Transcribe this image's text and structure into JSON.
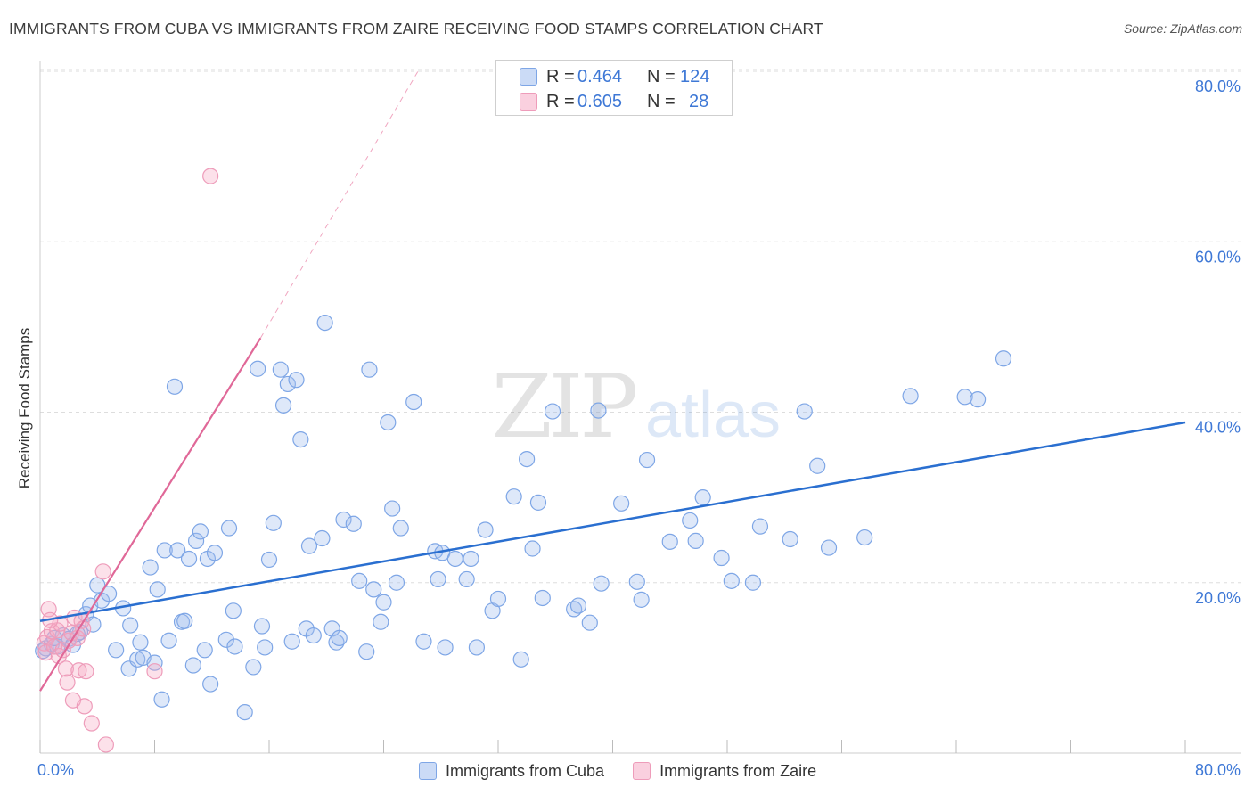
{
  "title": "IMMIGRANTS FROM CUBA VS IMMIGRANTS FROM ZAIRE RECEIVING FOOD STAMPS CORRELATION CHART",
  "source": "Source: ZipAtlas.com",
  "watermark": {
    "zip": "ZIP",
    "atlas": "atlas"
  },
  "legend_top": {
    "series1": {
      "r_label": "R =",
      "r_value": "0.464",
      "n_label": "N =",
      "n_value": "124"
    },
    "series2": {
      "r_label": "R =",
      "r_value": "0.605",
      "n_label": "N =",
      "n_value": "28"
    }
  },
  "legend_bottom": {
    "series1_label": "Immigrants from Cuba",
    "series2_label": "Immigrants from Zaire"
  },
  "colors": {
    "cuba_fill": "rgba(160,190,238,0.35)",
    "cuba_stroke": "#7ea6e6",
    "cuba_line": "#2a6fd0",
    "zaire_fill": "rgba(246,170,196,0.35)",
    "zaire_stroke": "#ee9cba",
    "zaire_line": "#e06898",
    "tick_label": "#3e78d6",
    "grid": "#dddddd"
  },
  "chart_data": {
    "type": "scatter",
    "title": "IMMIGRANTS FROM CUBA VS IMMIGRANTS FROM ZAIRE RECEIVING FOOD STAMPS CORRELATION CHART",
    "xlabel": "",
    "ylabel": "Receiving Food Stamps",
    "xlim": [
      0,
      80
    ],
    "ylim": [
      0,
      80
    ],
    "x_tick_labels": [
      {
        "value": 0,
        "label": "0.0%"
      },
      {
        "value": 80,
        "label": "80.0%"
      }
    ],
    "x_tick_marks": [
      0,
      8,
      16,
      24,
      32,
      40,
      48,
      56,
      64,
      72,
      80
    ],
    "y_ticks": [
      {
        "value": 20,
        "label": "20.0%"
      },
      {
        "value": 40,
        "label": "40.0%"
      },
      {
        "value": 60,
        "label": "60.0%"
      },
      {
        "value": 80,
        "label": "80.0%"
      }
    ],
    "series": [
      {
        "name": "Immigrants from Cuba",
        "r": 0.464,
        "n": 124,
        "trendline": {
          "x": [
            0,
            80
          ],
          "y": [
            15.5,
            38.8
          ],
          "dashed": false
        },
        "points": [
          [
            0.4,
            12.3
          ],
          [
            0.8,
            12.8
          ],
          [
            1.2,
            12.5
          ],
          [
            1.6,
            13.8
          ],
          [
            2.0,
            13.4
          ],
          [
            2.3,
            12.7
          ],
          [
            2.8,
            14.2
          ],
          [
            3.2,
            16.3
          ],
          [
            3.5,
            17.3
          ],
          [
            3.7,
            15.1
          ],
          [
            4.0,
            19.7
          ],
          [
            4.3,
            17.9
          ],
          [
            4.8,
            18.7
          ],
          [
            5.3,
            12.1
          ],
          [
            5.8,
            17.0
          ],
          [
            6.2,
            9.9
          ],
          [
            6.3,
            15.0
          ],
          [
            6.8,
            11.0
          ],
          [
            7.0,
            13.0
          ],
          [
            7.2,
            11.2
          ],
          [
            7.7,
            21.8
          ],
          [
            8.0,
            10.6
          ],
          [
            8.2,
            19.2
          ],
          [
            8.5,
            6.3
          ],
          [
            8.7,
            23.8
          ],
          [
            9.0,
            13.2
          ],
          [
            9.4,
            43.0
          ],
          [
            9.6,
            23.8
          ],
          [
            9.9,
            15.4
          ],
          [
            10.1,
            15.5
          ],
          [
            10.4,
            22.8
          ],
          [
            10.7,
            10.3
          ],
          [
            10.9,
            24.9
          ],
          [
            11.2,
            26.0
          ],
          [
            11.5,
            12.1
          ],
          [
            11.7,
            22.8
          ],
          [
            11.9,
            8.1
          ],
          [
            12.2,
            23.5
          ],
          [
            13.0,
            13.3
          ],
          [
            13.2,
            26.4
          ],
          [
            13.5,
            16.7
          ],
          [
            13.6,
            12.5
          ],
          [
            14.3,
            4.8
          ],
          [
            14.9,
            10.1
          ],
          [
            15.2,
            45.1
          ],
          [
            15.5,
            14.9
          ],
          [
            15.7,
            12.4
          ],
          [
            16.0,
            22.7
          ],
          [
            16.3,
            27.0
          ],
          [
            16.8,
            45.0
          ],
          [
            17.0,
            40.8
          ],
          [
            17.3,
            43.3
          ],
          [
            17.6,
            13.1
          ],
          [
            17.9,
            43.8
          ],
          [
            18.2,
            36.8
          ],
          [
            18.6,
            14.6
          ],
          [
            18.8,
            24.3
          ],
          [
            19.1,
            13.8
          ],
          [
            19.7,
            25.2
          ],
          [
            19.9,
            50.5
          ],
          [
            20.4,
            14.6
          ],
          [
            20.7,
            13.0
          ],
          [
            20.9,
            13.5
          ],
          [
            21.2,
            27.4
          ],
          [
            21.9,
            26.9
          ],
          [
            22.3,
            20.2
          ],
          [
            22.8,
            11.9
          ],
          [
            23.0,
            45.0
          ],
          [
            23.3,
            19.2
          ],
          [
            23.8,
            15.4
          ],
          [
            24.0,
            17.7
          ],
          [
            24.3,
            38.8
          ],
          [
            24.6,
            28.7
          ],
          [
            24.9,
            20.0
          ],
          [
            25.2,
            26.4
          ],
          [
            26.1,
            41.2
          ],
          [
            26.8,
            13.1
          ],
          [
            27.6,
            23.7
          ],
          [
            27.8,
            20.4
          ],
          [
            28.1,
            23.5
          ],
          [
            28.3,
            12.4
          ],
          [
            29.0,
            22.8
          ],
          [
            29.8,
            20.4
          ],
          [
            30.1,
            22.8
          ],
          [
            30.5,
            12.4
          ],
          [
            31.1,
            26.2
          ],
          [
            31.6,
            16.7
          ],
          [
            32.0,
            18.1
          ],
          [
            33.1,
            30.1
          ],
          [
            33.6,
            11.0
          ],
          [
            34.0,
            34.5
          ],
          [
            34.4,
            24.0
          ],
          [
            34.8,
            29.4
          ],
          [
            35.1,
            18.2
          ],
          [
            35.8,
            40.1
          ],
          [
            37.3,
            16.9
          ],
          [
            37.6,
            17.3
          ],
          [
            38.4,
            15.3
          ],
          [
            39.0,
            40.2
          ],
          [
            39.2,
            19.9
          ],
          [
            40.6,
            29.3
          ],
          [
            41.7,
            20.1
          ],
          [
            42.0,
            18.0
          ],
          [
            42.4,
            34.4
          ],
          [
            44.0,
            24.8
          ],
          [
            45.4,
            27.3
          ],
          [
            45.8,
            24.9
          ],
          [
            46.3,
            30.0
          ],
          [
            47.6,
            22.9
          ],
          [
            48.3,
            20.2
          ],
          [
            49.8,
            20.0
          ],
          [
            50.3,
            26.6
          ],
          [
            52.4,
            25.1
          ],
          [
            53.4,
            40.1
          ],
          [
            54.3,
            33.7
          ],
          [
            55.1,
            24.1
          ],
          [
            57.6,
            25.3
          ],
          [
            60.8,
            41.9
          ],
          [
            64.6,
            41.8
          ],
          [
            65.5,
            41.5
          ],
          [
            67.3,
            46.3
          ],
          [
            1.0,
            13.5
          ],
          [
            2.6,
            14.0
          ],
          [
            0.2,
            12.0
          ]
        ]
      },
      {
        "name": "Immigrants from Zaire",
        "r": 0.605,
        "n": 28,
        "trendline": {
          "x": [
            0,
            15.4
          ],
          "y": [
            7.3,
            48.7
          ],
          "dashed": false,
          "extension": {
            "x": [
              15.4,
              26.4
            ],
            "y": [
              48.7,
              80.0
            ]
          }
        },
        "points": [
          [
            0.3,
            12.9
          ],
          [
            0.4,
            11.8
          ],
          [
            0.5,
            13.6
          ],
          [
            0.6,
            16.9
          ],
          [
            0.8,
            14.3
          ],
          [
            1.0,
            12.5
          ],
          [
            1.2,
            14.4
          ],
          [
            1.3,
            11.4
          ],
          [
            1.4,
            15.2
          ],
          [
            1.6,
            12.1
          ],
          [
            1.8,
            9.9
          ],
          [
            1.9,
            8.3
          ],
          [
            2.0,
            13.2
          ],
          [
            2.2,
            14.1
          ],
          [
            2.3,
            6.2
          ],
          [
            2.4,
            15.9
          ],
          [
            2.6,
            13.5
          ],
          [
            2.7,
            9.7
          ],
          [
            2.9,
            15.5
          ],
          [
            3.0,
            14.6
          ],
          [
            3.1,
            5.5
          ],
          [
            3.2,
            9.6
          ],
          [
            3.6,
            3.5
          ],
          [
            4.4,
            21.3
          ],
          [
            4.6,
            1.0
          ],
          [
            8.0,
            9.6
          ],
          [
            11.9,
            67.7
          ],
          [
            0.7,
            15.6
          ]
        ]
      }
    ]
  }
}
